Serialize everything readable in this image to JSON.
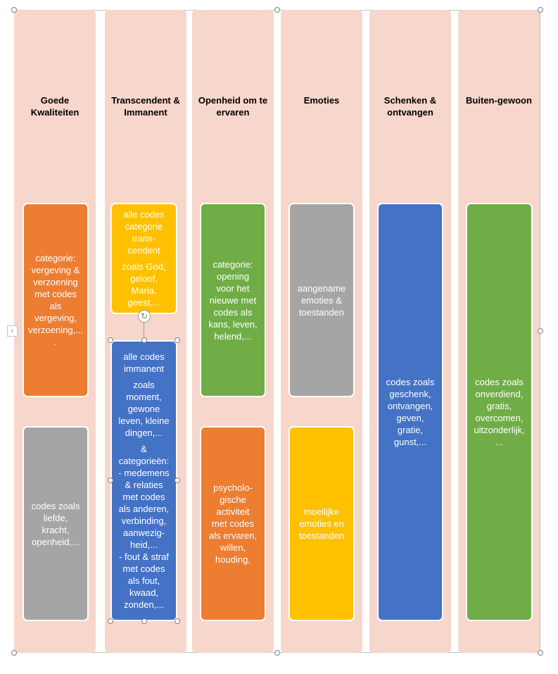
{
  "columns": [
    {
      "title": "Goede\nKwaliteiten"
    },
    {
      "title": "Transcendent &\nImmanent"
    },
    {
      "title": "Openheid om te\nervaren"
    },
    {
      "title": "Emoties"
    },
    {
      "title": "Schenken &\nontvangen"
    },
    {
      "title": "Buiten-gewoon"
    }
  ],
  "boxes": {
    "kwaliteiten_top": "categorie:\nvergeving &\nverzoening\nmet codes\nals\nvergeving,\nverzoening,...\n.",
    "kwaliteiten_bottom": "codes zoals\nliefde,\nkracht,\nopenheid,...",
    "transcendent": {
      "heading": "alle codes\ncategorie\ntrans-\ncendent",
      "examples": "zoals God,\ngeloof,\nMaria,\ngeest,..."
    },
    "immanent": {
      "heading": "alle codes\nimmanent",
      "examples": "zoals\nmoment,\ngewone\nleven, kleine\ndingen,...",
      "categories": "&\ncategorieën:\n- medemens\n& relaties\nmet codes\nals anderen,\nverbinding,\naanwezig-\nheid,...\n- fout & straf\nmet codes\nals fout,\nkwaad,\nzonden,..."
    },
    "openheid_top": "categorie:\nopening\nvoor het\nnieuwe met\ncodes als\nkans, leven,\nhelend,...",
    "openheid_bottom": "psycholo-\ngische\nactiviteit\nmet codes\nals ervaren,\nwillen,\nhouding,",
    "emoties_top": "aangename\nemoties &\ntoestanden",
    "emoties_bottom": "moeilijke\nemoties en\ntoestanden",
    "schenken": "codes zoals\ngeschenk,\nontvangen,\ngeven,\ngratie,\ngunst,...",
    "buitengewoon": "codes zoals\nonverdiend,\ngratis,\novercomen,\nuitzonderlijk,\n..."
  },
  "colors": {
    "column_bg": "#f7d6cb",
    "orange": "#ed7d31",
    "gray": "#a5a5a5",
    "yellow": "#ffc000",
    "green": "#70ad47",
    "blue": "#4472c4"
  },
  "icons": {
    "rotate": "rotate-handle-icon",
    "collapse": "chevron-left-icon"
  }
}
